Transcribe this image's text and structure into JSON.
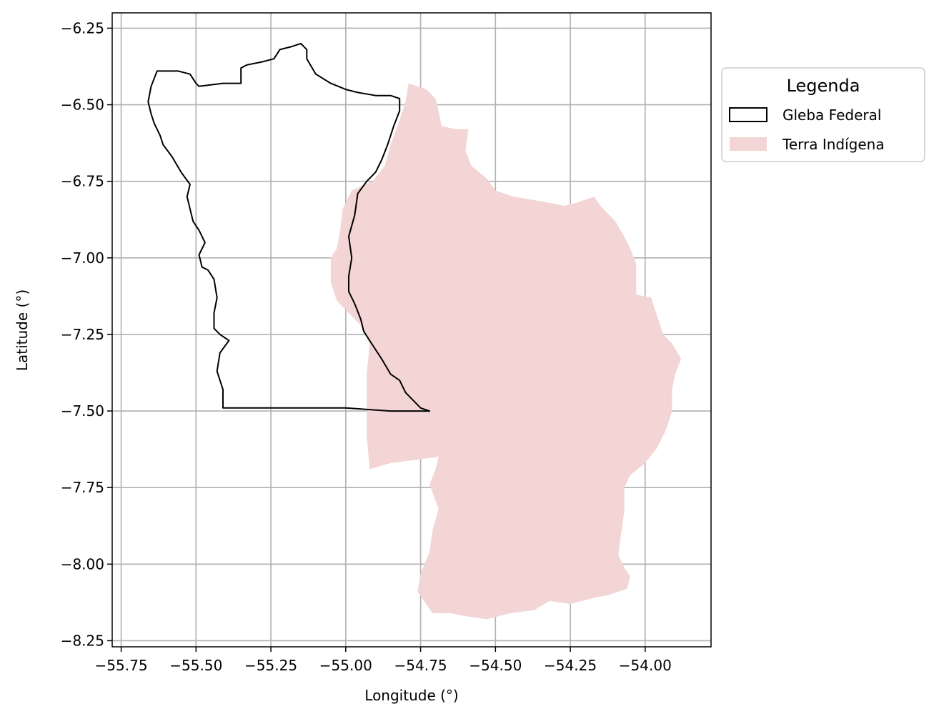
{
  "chart_data": {
    "type": "map",
    "xlabel": "Longitude (°)",
    "ylabel": "Latitude (°)",
    "xlim": [
      -55.78,
      -53.78
    ],
    "ylim": [
      -8.27,
      -6.2
    ],
    "xticks": [
      -55.75,
      -55.5,
      -55.25,
      -55.0,
      -54.75,
      -54.5,
      -54.25,
      -54.0
    ],
    "xtick_labels": [
      "−55.75",
      "−55.50",
      "−55.25",
      "−55.00",
      "−54.75",
      "−54.50",
      "−54.25",
      "−54.00"
    ],
    "yticks": [
      -6.25,
      -6.5,
      -6.75,
      -7.0,
      -7.25,
      -7.5,
      -7.75,
      -8.0,
      -8.25
    ],
    "ytick_labels": [
      "−6.25",
      "−6.50",
      "−6.75",
      "−7.00",
      "−7.25",
      "−7.50",
      "−7.75",
      "−8.00",
      "−8.25"
    ],
    "grid": true,
    "legend": {
      "title": "Legenda",
      "position": "outside-right-top",
      "entries": [
        {
          "label": "Gleba Federal",
          "style": "outline",
          "color": "#000000"
        },
        {
          "label": "Terra Indígena",
          "style": "fill",
          "color": "#f2d5d4"
        }
      ]
    },
    "layers": [
      {
        "name": "Terra Indígena",
        "fill": "#f2d5d4",
        "coords": [
          [
            -54.79,
            -6.43
          ],
          [
            -54.73,
            -6.45
          ],
          [
            -54.7,
            -6.48
          ],
          [
            -54.69,
            -6.52
          ],
          [
            -54.68,
            -6.57
          ],
          [
            -54.63,
            -6.58
          ],
          [
            -54.59,
            -6.58
          ],
          [
            -54.6,
            -6.65
          ],
          [
            -54.58,
            -6.7
          ],
          [
            -54.53,
            -6.74
          ],
          [
            -54.5,
            -6.78
          ],
          [
            -54.44,
            -6.8
          ],
          [
            -54.38,
            -6.81
          ],
          [
            -54.32,
            -6.82
          ],
          [
            -54.27,
            -6.83
          ],
          [
            -54.23,
            -6.82
          ],
          [
            -54.17,
            -6.8
          ],
          [
            -54.15,
            -6.83
          ],
          [
            -54.1,
            -6.88
          ],
          [
            -54.07,
            -6.93
          ],
          [
            -54.05,
            -6.97
          ],
          [
            -54.03,
            -7.02
          ],
          [
            -54.03,
            -7.08
          ],
          [
            -54.03,
            -7.12
          ],
          [
            -53.98,
            -7.13
          ],
          [
            -53.96,
            -7.19
          ],
          [
            -53.94,
            -7.25
          ],
          [
            -53.91,
            -7.28
          ],
          [
            -53.88,
            -7.33
          ],
          [
            -53.9,
            -7.38
          ],
          [
            -53.91,
            -7.43
          ],
          [
            -53.91,
            -7.5
          ],
          [
            -53.93,
            -7.56
          ],
          [
            -53.96,
            -7.62
          ],
          [
            -54.0,
            -7.67
          ],
          [
            -54.05,
            -7.71
          ],
          [
            -54.07,
            -7.75
          ],
          [
            -54.07,
            -7.83
          ],
          [
            -54.08,
            -7.9
          ],
          [
            -54.09,
            -7.97
          ],
          [
            -54.07,
            -8.01
          ],
          [
            -54.05,
            -8.04
          ],
          [
            -54.06,
            -8.08
          ],
          [
            -54.12,
            -8.1
          ],
          [
            -54.17,
            -8.11
          ],
          [
            -54.25,
            -8.13
          ],
          [
            -54.32,
            -8.12
          ],
          [
            -54.37,
            -8.15
          ],
          [
            -54.45,
            -8.16
          ],
          [
            -54.53,
            -8.18
          ],
          [
            -54.6,
            -8.17
          ],
          [
            -54.65,
            -8.16
          ],
          [
            -54.71,
            -8.16
          ],
          [
            -54.76,
            -8.09
          ],
          [
            -54.75,
            -8.03
          ],
          [
            -54.72,
            -7.96
          ],
          [
            -54.71,
            -7.89
          ],
          [
            -54.69,
            -7.82
          ],
          [
            -54.72,
            -7.74
          ],
          [
            -54.7,
            -7.69
          ],
          [
            -54.69,
            -7.65
          ],
          [
            -54.85,
            -7.67
          ],
          [
            -54.92,
            -7.69
          ],
          [
            -54.93,
            -7.58
          ],
          [
            -54.93,
            -7.45
          ],
          [
            -54.93,
            -7.38
          ],
          [
            -54.92,
            -7.28
          ],
          [
            -54.95,
            -7.22
          ],
          [
            -54.99,
            -7.18
          ],
          [
            -55.03,
            -7.14
          ],
          [
            -55.05,
            -7.08
          ],
          [
            -55.05,
            -7.0
          ],
          [
            -55.03,
            -6.97
          ],
          [
            -55.02,
            -6.92
          ],
          [
            -55.01,
            -6.84
          ],
          [
            -54.98,
            -6.78
          ],
          [
            -54.91,
            -6.75
          ],
          [
            -54.87,
            -6.7
          ],
          [
            -54.85,
            -6.63
          ],
          [
            -54.82,
            -6.55
          ],
          [
            -54.8,
            -6.49
          ]
        ]
      },
      {
        "name": "Gleba Federal",
        "stroke": "#000000",
        "coords": [
          [
            -55.66,
            -6.49
          ],
          [
            -55.65,
            -6.44
          ],
          [
            -55.63,
            -6.39
          ],
          [
            -55.6,
            -6.39
          ],
          [
            -55.56,
            -6.39
          ],
          [
            -55.52,
            -6.4
          ],
          [
            -55.5,
            -6.43
          ],
          [
            -55.49,
            -6.44
          ],
          [
            -55.41,
            -6.43
          ],
          [
            -55.35,
            -6.43
          ],
          [
            -55.35,
            -6.38
          ],
          [
            -55.33,
            -6.37
          ],
          [
            -55.28,
            -6.36
          ],
          [
            -55.24,
            -6.35
          ],
          [
            -55.22,
            -6.32
          ],
          [
            -55.18,
            -6.31
          ],
          [
            -55.15,
            -6.3
          ],
          [
            -55.13,
            -6.32
          ],
          [
            -55.13,
            -6.35
          ],
          [
            -55.1,
            -6.4
          ],
          [
            -55.05,
            -6.43
          ],
          [
            -55.0,
            -6.45
          ],
          [
            -54.96,
            -6.46
          ],
          [
            -54.9,
            -6.47
          ],
          [
            -54.85,
            -6.47
          ],
          [
            -54.82,
            -6.48
          ],
          [
            -54.82,
            -6.52
          ],
          [
            -54.84,
            -6.57
          ],
          [
            -54.86,
            -6.63
          ],
          [
            -54.88,
            -6.68
          ],
          [
            -54.9,
            -6.72
          ],
          [
            -54.93,
            -6.75
          ],
          [
            -54.96,
            -6.79
          ],
          [
            -54.97,
            -6.86
          ],
          [
            -54.99,
            -6.93
          ],
          [
            -54.98,
            -7.0
          ],
          [
            -54.99,
            -7.06
          ],
          [
            -54.99,
            -7.11
          ],
          [
            -54.97,
            -7.15
          ],
          [
            -54.95,
            -7.2
          ],
          [
            -54.94,
            -7.24
          ],
          [
            -54.92,
            -7.27
          ],
          [
            -54.88,
            -7.33
          ],
          [
            -54.85,
            -7.38
          ],
          [
            -54.82,
            -7.4
          ],
          [
            -54.8,
            -7.44
          ],
          [
            -54.77,
            -7.47
          ],
          [
            -54.75,
            -7.49
          ],
          [
            -54.72,
            -7.5
          ],
          [
            -54.85,
            -7.5
          ],
          [
            -55.0,
            -7.49
          ],
          [
            -55.12,
            -7.49
          ],
          [
            -55.24,
            -7.49
          ],
          [
            -55.41,
            -7.49
          ],
          [
            -55.41,
            -7.43
          ],
          [
            -55.43,
            -7.37
          ],
          [
            -55.42,
            -7.31
          ],
          [
            -55.39,
            -7.27
          ],
          [
            -55.42,
            -7.25
          ],
          [
            -55.44,
            -7.23
          ],
          [
            -55.44,
            -7.18
          ],
          [
            -55.43,
            -7.13
          ],
          [
            -55.44,
            -7.07
          ],
          [
            -55.46,
            -7.04
          ],
          [
            -55.48,
            -7.03
          ],
          [
            -55.49,
            -6.99
          ],
          [
            -55.47,
            -6.95
          ],
          [
            -55.49,
            -6.91
          ],
          [
            -55.51,
            -6.88
          ],
          [
            -55.52,
            -6.84
          ],
          [
            -55.53,
            -6.8
          ],
          [
            -55.52,
            -6.76
          ],
          [
            -55.55,
            -6.72
          ],
          [
            -55.58,
            -6.67
          ],
          [
            -55.61,
            -6.63
          ],
          [
            -55.62,
            -6.6
          ],
          [
            -55.64,
            -6.56
          ],
          [
            -55.65,
            -6.53
          ]
        ]
      }
    ]
  }
}
